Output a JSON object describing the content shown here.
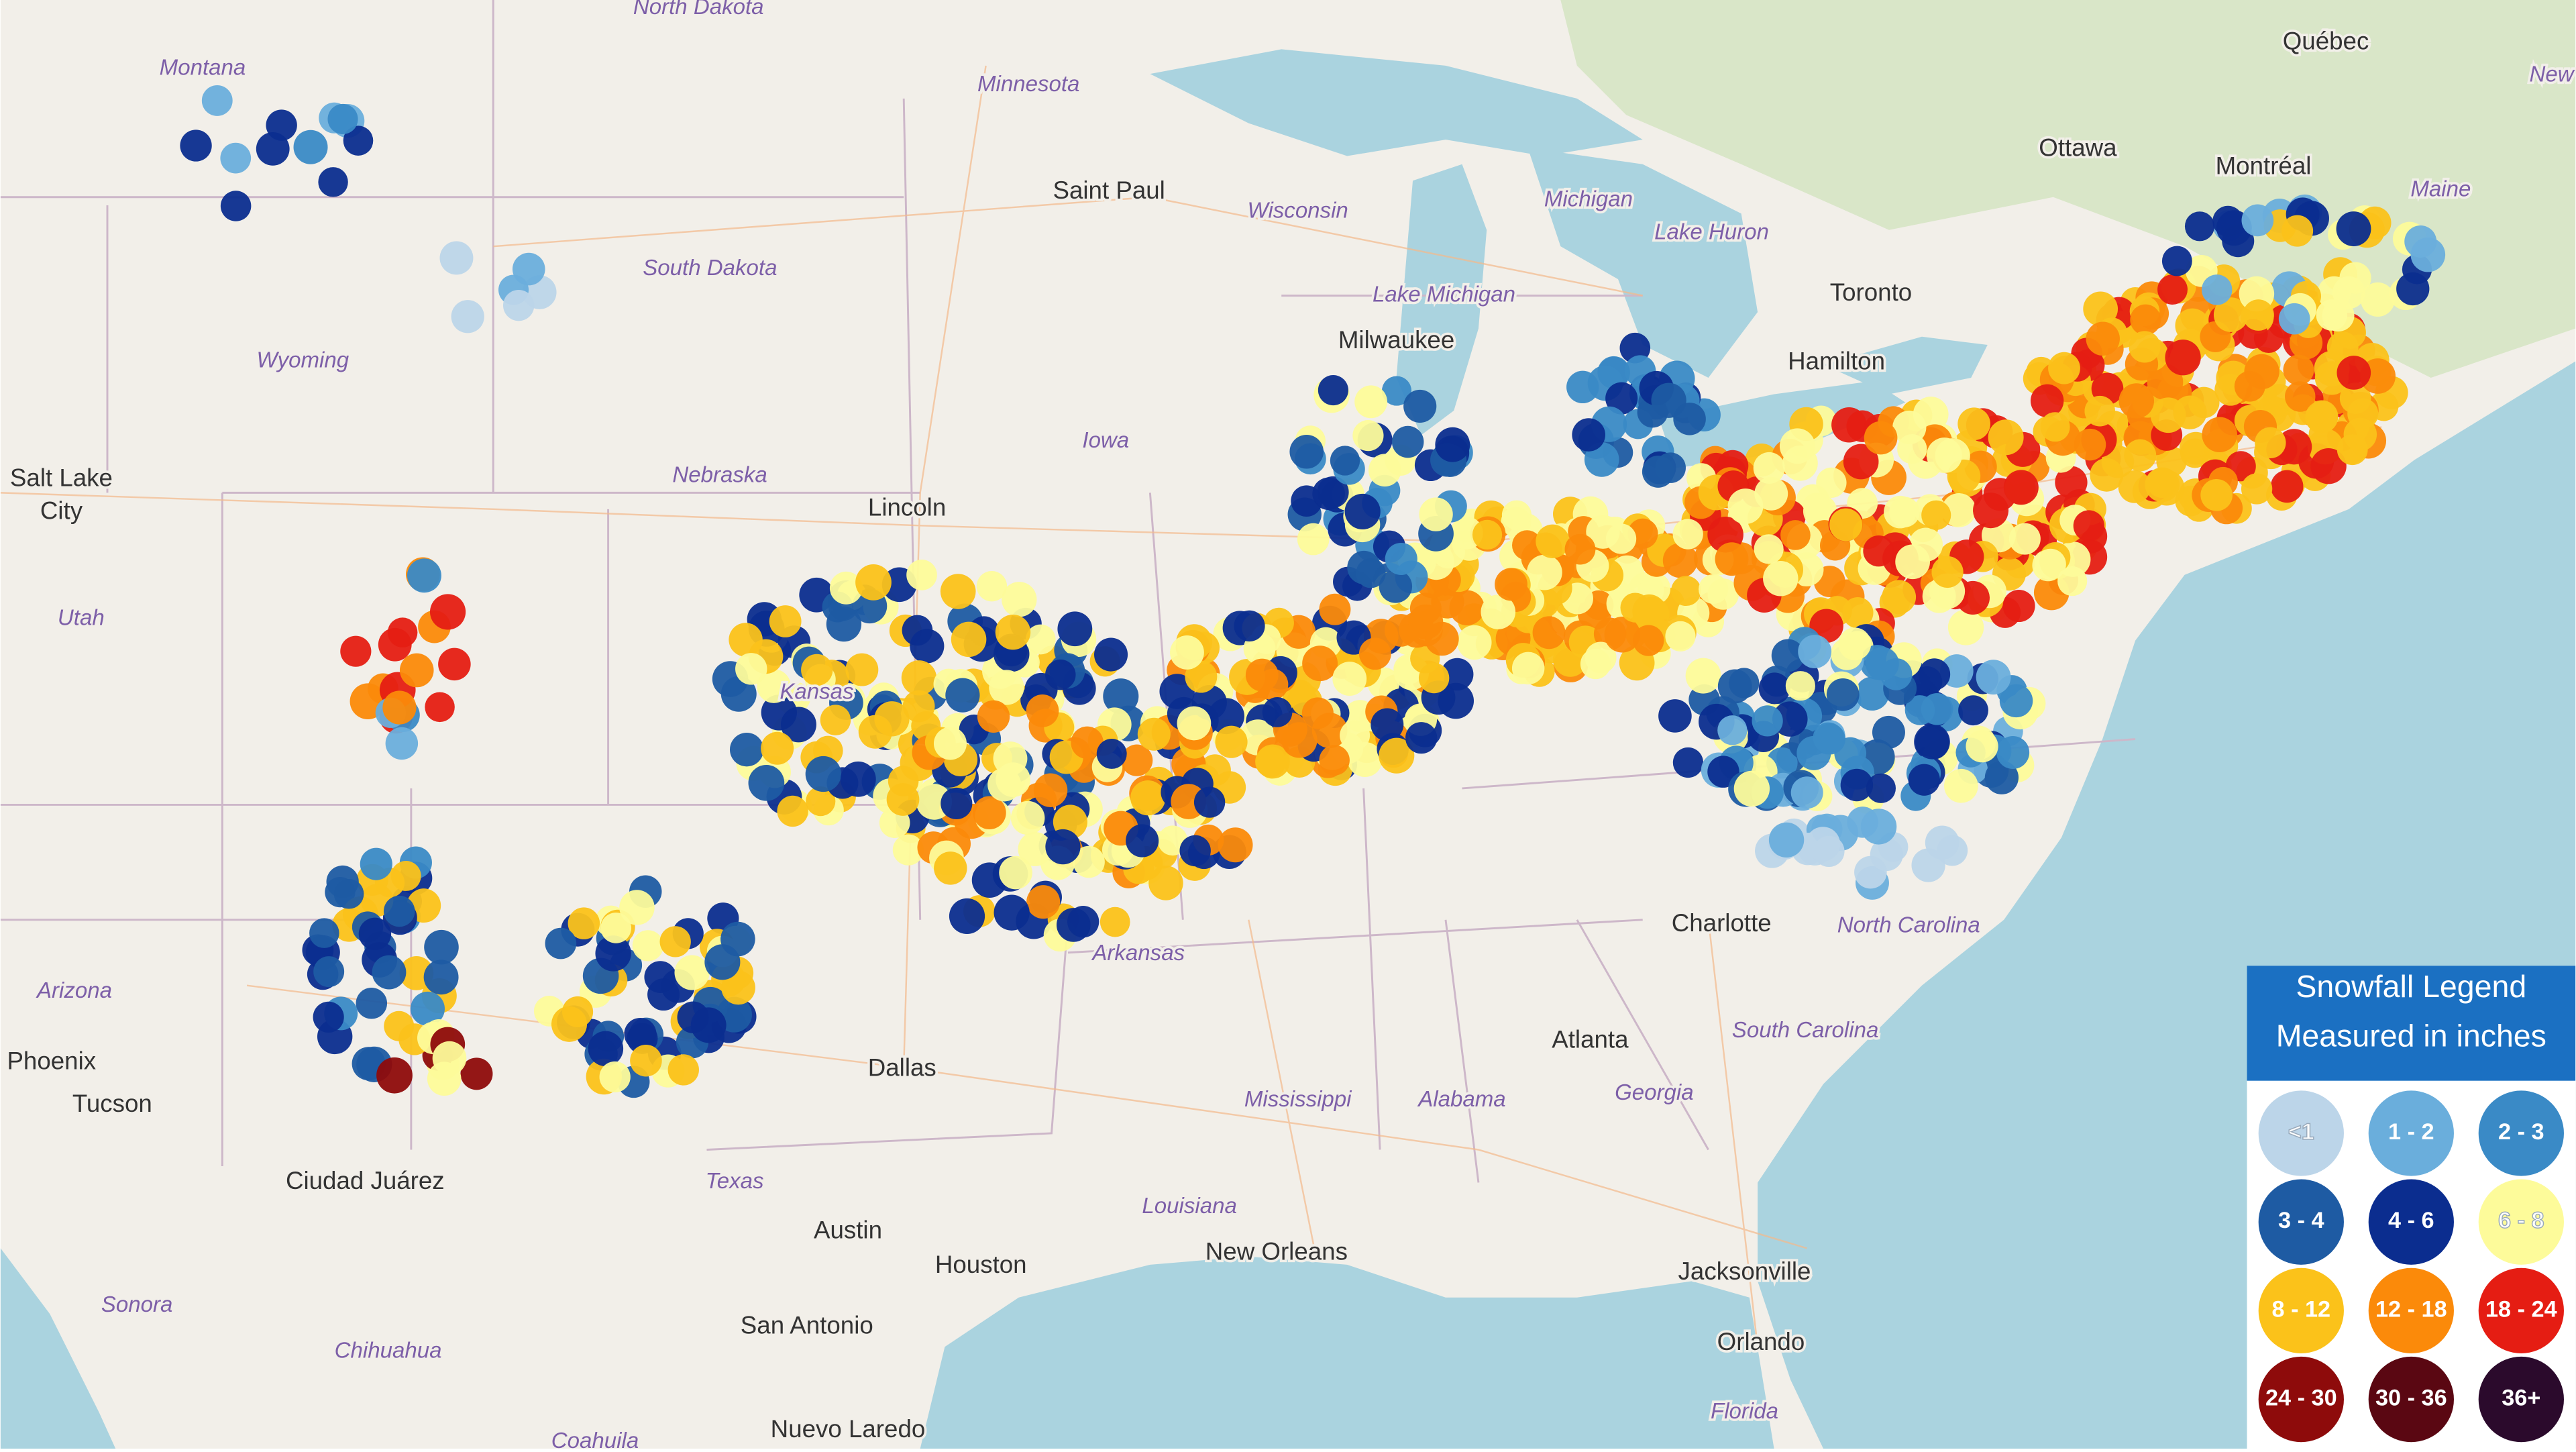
{
  "map": {
    "labels": [
      "North Dakota",
      "Montana",
      "Minnesota",
      "Québec",
      "New",
      "Ottawa",
      "Montréal",
      "Saint Paul",
      "Wisconsin",
      "Michigan",
      "Maine",
      "Lake Huron",
      "South Dakota",
      "Wyoming",
      "Lake Michigan",
      "Toronto",
      "Milwaukee",
      "Hamilton",
      "Iowa",
      "Nebraska",
      "Lincoln",
      "Salt Lake",
      "City",
      "Utah",
      "Kansas",
      "Arizona",
      "Phoenix",
      "Tucson",
      "Dallas",
      "Arkansas",
      "Charlotte",
      "North Carolina",
      "Atlanta",
      "South Carolina",
      "Georgia",
      "Mississippi",
      "Alabama",
      "Texas",
      "Ciudad Juárez",
      "Austin",
      "Houston",
      "Louisiana",
      "New Orleans",
      "Jacksonville",
      "Sonora",
      "Chihuahua",
      "San Antonio",
      "Orlando",
      "Florida",
      "Nuevo Laredo",
      "Coahuila"
    ]
  },
  "legend": {
    "title": "Snowfall Legend",
    "subtitle": "Measured in inches",
    "items": [
      {
        "label": "<1",
        "color": "#bcd5e9"
      },
      {
        "label": "1 - 2",
        "color": "#6aaedc"
      },
      {
        "label": "2 - 3",
        "color": "#3a8ac6"
      },
      {
        "label": "3 - 4",
        "color": "#1e5ba3"
      },
      {
        "label": "4 - 6",
        "color": "#0b2d8f"
      },
      {
        "label": "6 - 8",
        "color": "#fdfb9a"
      },
      {
        "label": "8 - 12",
        "color": "#fbc21a"
      },
      {
        "label": "12 - 18",
        "color": "#fb8a0a"
      },
      {
        "label": "18 - 24",
        "color": "#e51d13"
      },
      {
        "label": "24 - 30",
        "color": "#8e0b0b"
      },
      {
        "label": "30 - 36",
        "color": "#5a0712"
      },
      {
        "label": "36+",
        "color": "#2b0a2c"
      }
    ]
  }
}
